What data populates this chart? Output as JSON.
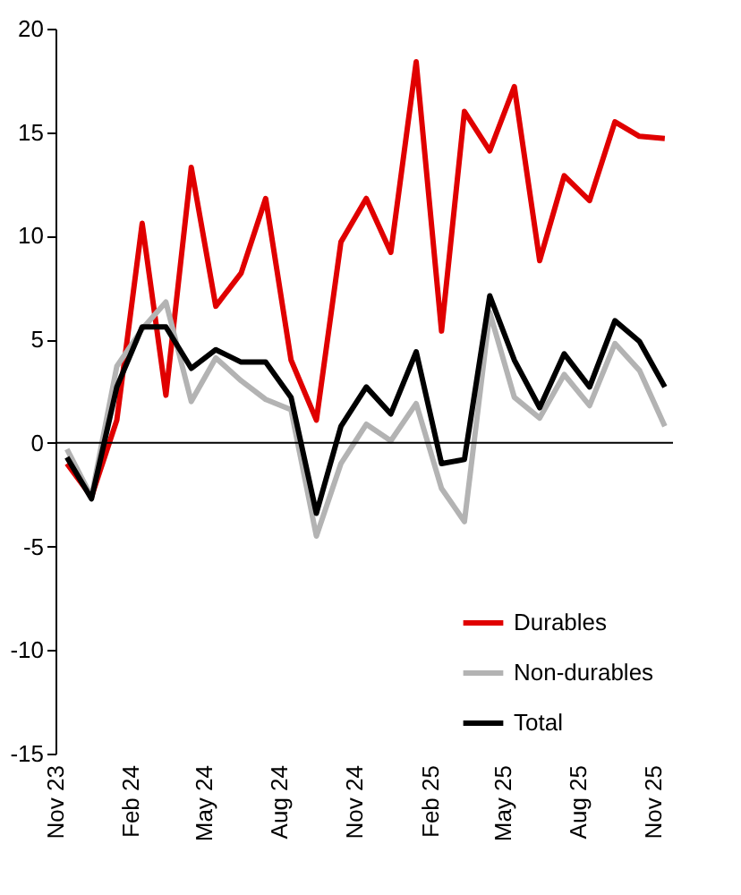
{
  "chart_data": {
    "type": "line",
    "x": [
      "2023-11-15",
      "2023-12-15",
      "2024-01-15",
      "2024-02-15",
      "2024-03-15",
      "2024-04-15",
      "2024-05-15",
      "2024-06-15",
      "2024-07-15",
      "2024-08-15",
      "2024-09-15",
      "2024-10-15",
      "2024-11-15",
      "2024-12-15",
      "2025-01-15",
      "2025-02-15",
      "2025-03-15",
      "2025-04-15",
      "2025-05-15",
      "2025-06-15",
      "2025-07-15",
      "2025-08-15",
      "2025-09-15",
      "2025-10-15",
      "2025-11-15"
    ],
    "series": [
      {
        "name": "Durables",
        "color": "#e00000",
        "values": [
          -1.0,
          -2.6,
          1.1,
          10.6,
          2.3,
          13.3,
          6.6,
          8.2,
          11.8,
          4.0,
          1.1,
          9.7,
          11.8,
          9.2,
          18.4,
          5.4,
          16.0,
          14.1,
          17.2,
          8.8,
          12.9,
          11.7,
          15.5,
          14.8,
          14.7
        ]
      },
      {
        "name": "Non-durables",
        "color": "#b3b3b3",
        "values": [
          -0.3,
          -2.6,
          3.7,
          5.5,
          6.8,
          2.0,
          4.1,
          3.0,
          2.1,
          1.6,
          -4.5,
          -1.0,
          0.9,
          0.1,
          1.9,
          -2.2,
          -3.8,
          6.3,
          2.2,
          1.2,
          3.3,
          1.8,
          4.8,
          3.5,
          0.8
        ]
      },
      {
        "name": "Total",
        "color": "#000000",
        "values": [
          -0.7,
          -2.7,
          2.7,
          5.6,
          5.6,
          3.6,
          4.5,
          3.9,
          3.9,
          2.2,
          -3.4,
          0.8,
          2.7,
          1.4,
          4.4,
          -1.0,
          -0.8,
          7.1,
          4.0,
          1.7,
          4.3,
          2.7,
          5.9,
          4.9,
          2.7
        ]
      }
    ],
    "xlim": [
      "2023-11-01",
      "2025-11-25"
    ],
    "xticks": [
      {
        "value": "2023-11-01",
        "label": "Nov 23"
      },
      {
        "value": "2024-02-01",
        "label": "Feb 24"
      },
      {
        "value": "2024-05-01",
        "label": "May 24"
      },
      {
        "value": "2024-08-01",
        "label": "Aug 24"
      },
      {
        "value": "2024-11-01",
        "label": "Nov 24"
      },
      {
        "value": "2025-02-01",
        "label": "Feb 25"
      },
      {
        "value": "2025-05-01",
        "label": "May 25"
      },
      {
        "value": "2025-08-01",
        "label": "Aug 25"
      },
      {
        "value": "2025-11-01",
        "label": "Nov 25"
      }
    ],
    "ylim": [
      -15,
      20
    ],
    "yticks": [
      -15,
      -10,
      -5,
      0,
      5,
      10,
      15,
      20
    ],
    "ref_lines": [
      {
        "axis": "y",
        "value": 0,
        "color": "#000000"
      }
    ],
    "legend": "bottom right",
    "grid": false,
    "marker": "none",
    "line_style": "solid"
  }
}
